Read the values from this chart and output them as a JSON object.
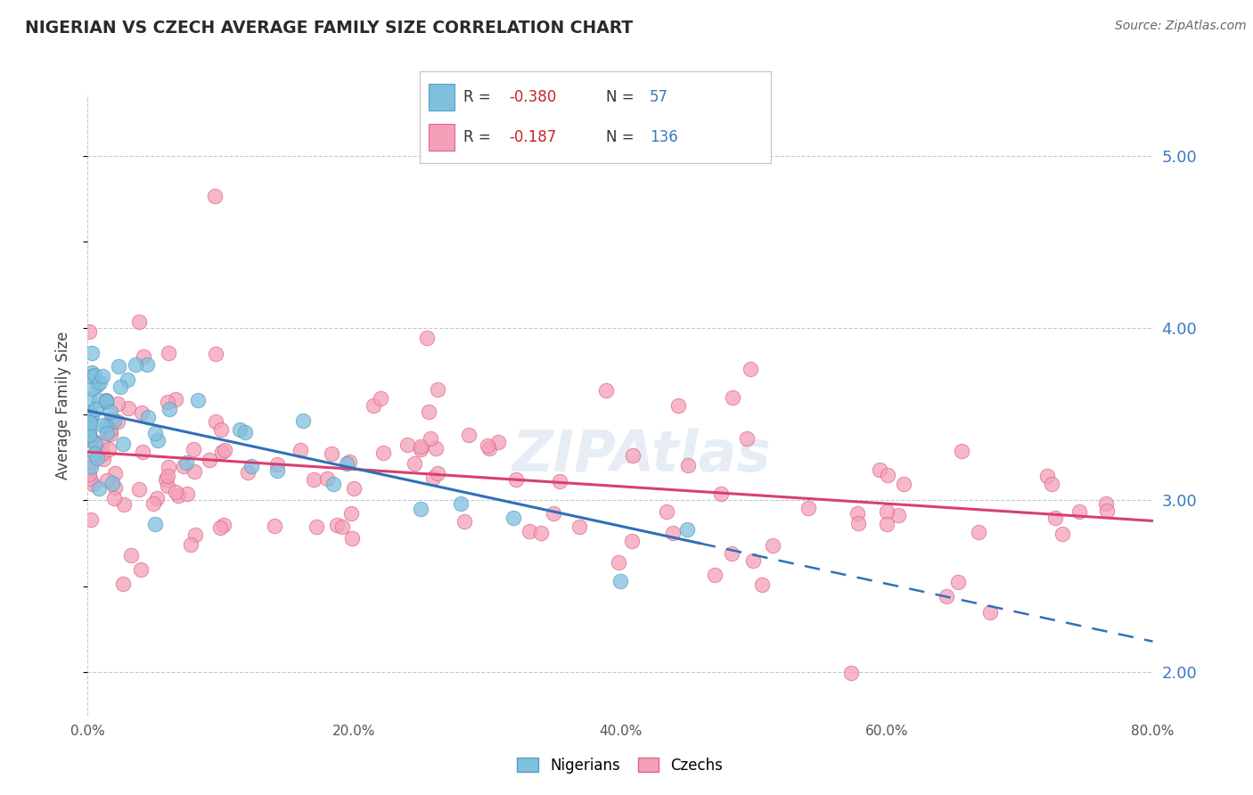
{
  "title": "NIGERIAN VS CZECH AVERAGE FAMILY SIZE CORRELATION CHART",
  "source": "Source: ZipAtlas.com",
  "ylabel": "Average Family Size",
  "xlim": [
    0.0,
    80.0
  ],
  "ylim": [
    1.75,
    5.35
  ],
  "yticks": [
    2.0,
    3.0,
    4.0,
    5.0
  ],
  "xtick_labels": [
    "0.0%",
    "20.0%",
    "40.0%",
    "60.0%",
    "80.0%"
  ],
  "nigerian_color": "#7fbfdf",
  "nigerian_edge": "#5a9fc0",
  "czech_color": "#f4a0b8",
  "czech_edge": "#e06888",
  "blue_line_color": "#3070b8",
  "pink_line_color": "#d84070",
  "legend_R_blue": "-0.380",
  "legend_N_blue": "57",
  "legend_R_pink": "-0.187",
  "legend_N_pink": "136",
  "legend_label_blue": "Nigerians",
  "legend_label_pink": "Czechs",
  "nig_line_x0": 0,
  "nig_line_y0": 3.52,
  "nig_line_x1": 80,
  "nig_line_y1": 2.18,
  "nig_solid_end": 46,
  "czech_line_x0": 0,
  "czech_line_y0": 3.28,
  "czech_line_x1": 80,
  "czech_line_y1": 2.88
}
